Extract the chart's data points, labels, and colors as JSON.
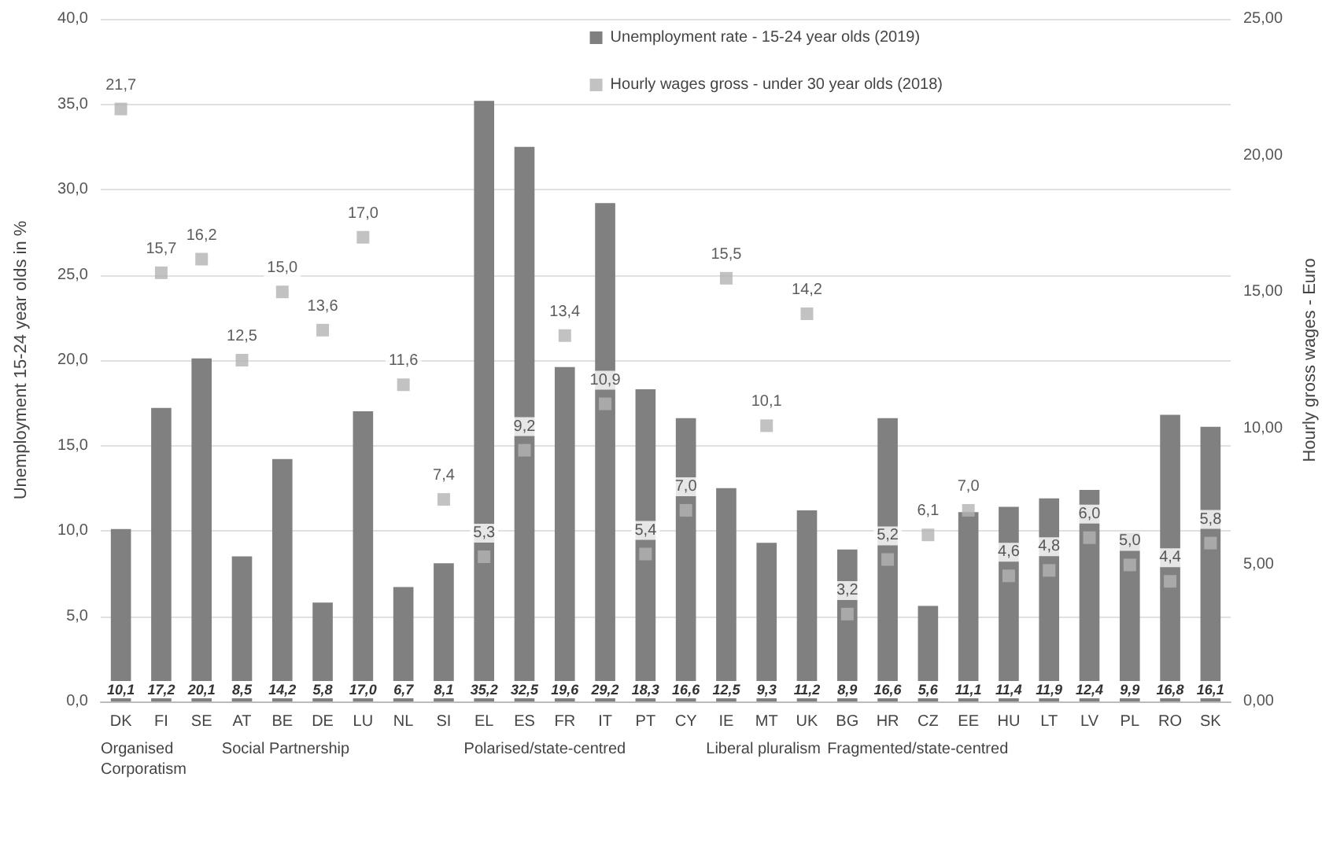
{
  "chart_data": {
    "type": "bar",
    "ylabel": "Unemployment 15-24 year olds in %",
    "y2label": "Hourly gross wages - Euro",
    "categories": [
      "DK",
      "FI",
      "SE",
      "AT",
      "BE",
      "DE",
      "LU",
      "NL",
      "SI",
      "EL",
      "ES",
      "FR",
      "IT",
      "PT",
      "CY",
      "IE",
      "MT",
      "UK",
      "BG",
      "HR",
      "CZ",
      "EE",
      "HU",
      "LT",
      "LV",
      "PL",
      "RO",
      "SK"
    ],
    "series": [
      {
        "name": "Unemployment rate - 15-24 year olds (2019)",
        "color": "#808080",
        "values": [
          10.1,
          17.2,
          20.1,
          8.5,
          14.2,
          5.8,
          17.0,
          6.7,
          8.1,
          35.2,
          32.5,
          19.6,
          29.2,
          18.3,
          16.6,
          12.5,
          9.3,
          11.2,
          8.9,
          16.6,
          5.6,
          11.1,
          11.4,
          11.9,
          12.4,
          9.9,
          16.8,
          16.1
        ],
        "value_labels": [
          "10,1",
          "17,2",
          "20,1",
          "8,5",
          "14,2",
          "5,8",
          "17,0",
          "6,7",
          "8,1",
          "35,2",
          "32,5",
          "19,6",
          "29,2",
          "18,3",
          "16,6",
          "12,5",
          "9,3",
          "11,2",
          "8,9",
          "16,6",
          "5,6",
          "11,1",
          "11,4",
          "11,9",
          "12,4",
          "9,9",
          "16,8",
          "16,1"
        ]
      },
      {
        "name": "Hourly wages gross - under 30 year olds (2018)",
        "type": "scatter",
        "axis": "y2",
        "marker": "square",
        "color": "#b3b3b3",
        "values": [
          21.7,
          15.7,
          16.2,
          12.5,
          15.0,
          13.6,
          17.0,
          11.6,
          7.4,
          5.3,
          9.2,
          13.4,
          10.9,
          5.4,
          7.0,
          15.5,
          10.1,
          14.2,
          3.2,
          5.2,
          6.1,
          7.0,
          4.6,
          4.8,
          6.0,
          5.0,
          4.4,
          5.8
        ],
        "value_labels": [
          "21,7",
          "15,7",
          "16,2",
          "12,5",
          "15,0",
          "13,6",
          "17,0",
          "11,6",
          "7,4",
          "5,3",
          "9,2",
          "13,4",
          "10,9",
          "5,4",
          "7,0",
          "15,5",
          "10,1",
          "14,2",
          "3,2",
          "5,2",
          "6,1",
          "7,0",
          "4,6",
          "4,8",
          "6,0",
          "5,0",
          "4,4",
          "5,8"
        ]
      }
    ],
    "ylim": [
      0,
      40
    ],
    "yticks": [
      {
        "value": 0,
        "label": "0,0"
      },
      {
        "value": 5,
        "label": "5,0"
      },
      {
        "value": 10,
        "label": "10,0"
      },
      {
        "value": 15,
        "label": "15,0"
      },
      {
        "value": 20,
        "label": "20,0"
      },
      {
        "value": 25,
        "label": "25,0"
      },
      {
        "value": 30,
        "label": "30,0"
      },
      {
        "value": 35,
        "label": "35,0"
      },
      {
        "value": 40,
        "label": "40,0"
      }
    ],
    "y2lim": [
      0,
      25
    ],
    "y2ticks": [
      {
        "value": 0,
        "label": "0,00"
      },
      {
        "value": 5,
        "label": "5,00"
      },
      {
        "value": 10,
        "label": "10,00"
      },
      {
        "value": 15,
        "label": "15,00"
      },
      {
        "value": 20,
        "label": "20,00"
      },
      {
        "value": 25,
        "label": "25,00"
      }
    ],
    "annotations": [
      "Organised Corporatism",
      "Social Partnership",
      "Polarised/state-centred",
      "Liberal pluralism",
      "Fragmented/state-centred"
    ],
    "grid": "y",
    "legend": "top right"
  }
}
